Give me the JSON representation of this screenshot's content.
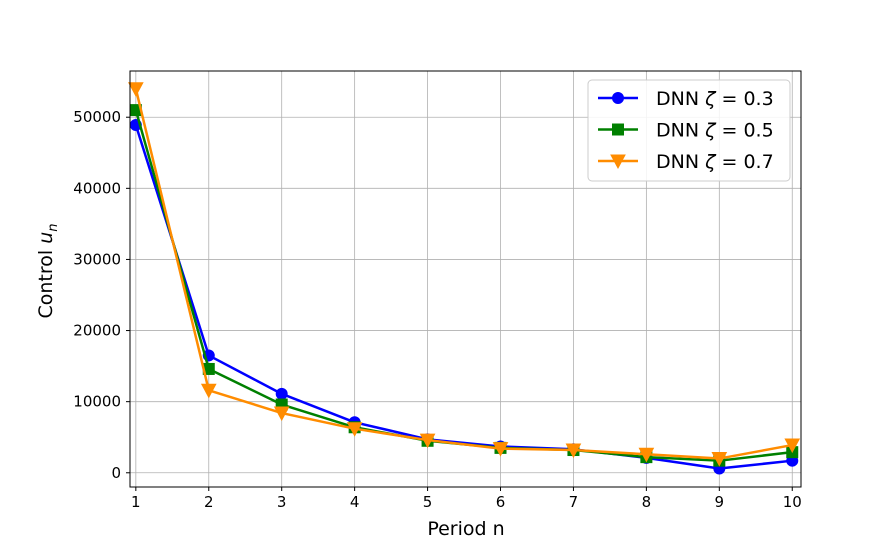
{
  "chart_data": {
    "type": "line",
    "x": [
      1,
      2,
      3,
      4,
      5,
      6,
      7,
      8,
      9,
      10
    ],
    "xlabel": "Period n",
    "ylabel_text": "Control ",
    "ylabel_math_base": "u",
    "ylabel_math_sub": "n",
    "xlim": [
      0.92,
      10.12
    ],
    "ylim": [
      -2000,
      56500
    ],
    "xticks": [
      1,
      2,
      3,
      4,
      5,
      6,
      7,
      8,
      9,
      10
    ],
    "yticks": [
      0,
      10000,
      20000,
      30000,
      40000,
      50000
    ],
    "grid": true,
    "legend_position": "top-right",
    "series": [
      {
        "name": "DNN ζ = 0.3",
        "legend_prefix": "DNN ",
        "legend_symbol": "ζ",
        "legend_value": " = 0.3",
        "color": "#0000ff",
        "marker": "circle",
        "values": [
          48900,
          16500,
          11100,
          7100,
          4700,
          3700,
          3300,
          2100,
          600,
          1700
        ]
      },
      {
        "name": "DNN ζ = 0.5",
        "legend_prefix": "DNN ",
        "legend_symbol": "ζ",
        "legend_value": " = 0.5",
        "color": "#008000",
        "marker": "square",
        "values": [
          51000,
          14600,
          9600,
          6400,
          4500,
          3500,
          3200,
          2200,
          1700,
          2900
        ]
      },
      {
        "name": "DNN ζ = 0.7",
        "legend_prefix": "DNN ",
        "legend_symbol": "ζ",
        "legend_value": " = 0.7",
        "color": "#ff8c00",
        "marker": "triangle-down",
        "values": [
          54000,
          11600,
          8400,
          6200,
          4600,
          3400,
          3200,
          2600,
          2000,
          3900
        ]
      }
    ]
  }
}
